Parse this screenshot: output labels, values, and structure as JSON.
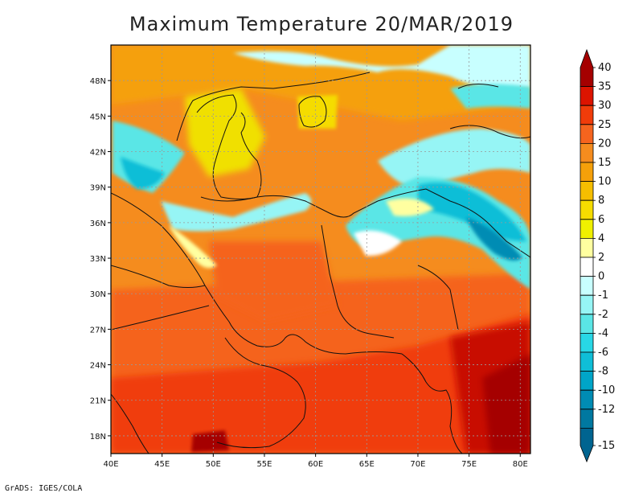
{
  "title": "Maximum Temperature 20/MAR/2019",
  "footer": "GrADS: IGES/COLA",
  "map": {
    "lon_range": [
      40,
      81
    ],
    "lat_range": [
      16.5,
      51
    ],
    "lat_ticks": [
      {
        "value": 18,
        "label": "18N"
      },
      {
        "value": 21,
        "label": "21N"
      },
      {
        "value": 24,
        "label": "24N"
      },
      {
        "value": 27,
        "label": "27N"
      },
      {
        "value": 30,
        "label": "30N"
      },
      {
        "value": 33,
        "label": "33N"
      },
      {
        "value": 36,
        "label": "36N"
      },
      {
        "value": 39,
        "label": "39N"
      },
      {
        "value": 42,
        "label": "42N"
      },
      {
        "value": 45,
        "label": "45N"
      },
      {
        "value": 48,
        "label": "48N"
      }
    ],
    "lon_ticks": [
      {
        "value": 40,
        "label": "40E"
      },
      {
        "value": 45,
        "label": "45E"
      },
      {
        "value": 50,
        "label": "50E"
      },
      {
        "value": 55,
        "label": "55E"
      },
      {
        "value": 60,
        "label": "60E"
      },
      {
        "value": 65,
        "label": "65E"
      },
      {
        "value": 70,
        "label": "70E"
      },
      {
        "value": 75,
        "label": "75E"
      },
      {
        "value": 80,
        "label": "80E"
      }
    ]
  },
  "colorbar": {
    "levels": [
      {
        "label": "40",
        "color": "#a50000"
      },
      {
        "label": "35",
        "color": "#dc1400"
      },
      {
        "label": "30",
        "color": "#f03c0a"
      },
      {
        "label": "25",
        "color": "#f5641e"
      },
      {
        "label": "20",
        "color": "#f58c1e"
      },
      {
        "label": "15",
        "color": "#f5a00a"
      },
      {
        "label": "10",
        "color": "#f5be00"
      },
      {
        "label": "8",
        "color": "#f5dc00"
      },
      {
        "label": "6",
        "color": "#f0f000"
      },
      {
        "label": "4",
        "color": "#ffffa0"
      },
      {
        "label": "2",
        "color": "#ffffff"
      },
      {
        "label": "0",
        "color": "#c8ffff"
      },
      {
        "label": "-1",
        "color": "#96f5f5"
      },
      {
        "label": "-2",
        "color": "#5ae6e6"
      },
      {
        "label": "-4",
        "color": "#28d7e6"
      },
      {
        "label": "-6",
        "color": "#0fbed7"
      },
      {
        "label": "-8",
        "color": "#00a5c8"
      },
      {
        "label": "-10",
        "color": "#008cb4"
      },
      {
        "label": "-12",
        "color": "#0078a0"
      },
      {
        "label": "-15",
        "color": "#006490"
      }
    ]
  }
}
